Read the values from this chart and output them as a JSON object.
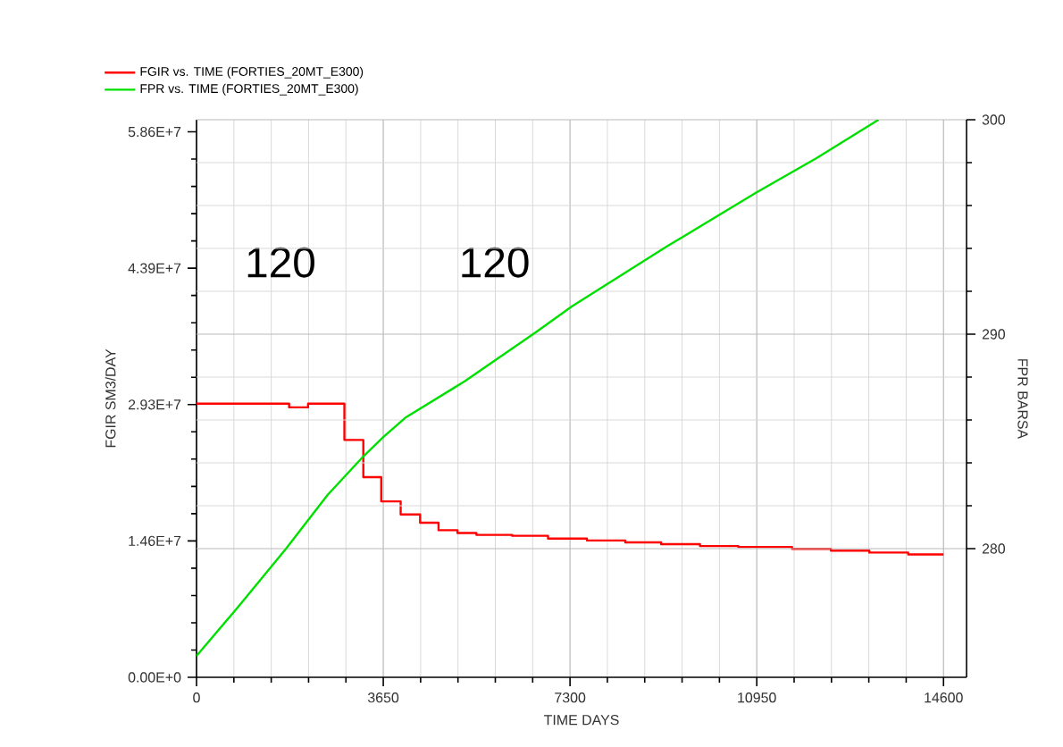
{
  "chart_data": {
    "type": "step",
    "xlabel": "TIME DAYS",
    "ylabel": "FGIR SM3/DAY",
    "y2label": "FPR BARSA",
    "xlim": [
      0,
      15050
    ],
    "xticks": [
      0,
      3650,
      7300,
      10950,
      14600
    ],
    "ylim": [
      0,
      59900000
    ],
    "yticks": [
      {
        "value": 0,
        "label": "0.00E+0"
      },
      {
        "value": 14650000,
        "label": "1.46E+7"
      },
      {
        "value": 29300000,
        "label": "2.93E+7"
      },
      {
        "value": 43950000,
        "label": "4.39E+7"
      },
      {
        "value": 58600000,
        "label": "5.86E+7"
      }
    ],
    "y2lim": [
      274,
      300
    ],
    "y2ticks": [
      280,
      290,
      300
    ],
    "grid": true,
    "legend": "top left",
    "marker": "none",
    "line_style": "solid",
    "annotations": [
      "120",
      "120"
    ],
    "series": [
      {
        "name": "FGIR vs. TIME (FORTIES_20MT_E300)",
        "color": "#ff0000",
        "axis": "y",
        "x": [
          0,
          1810,
          2180,
          2890,
          3260,
          3610,
          3990,
          4370,
          4730,
          5100,
          5470,
          6170,
          6870,
          7630,
          8380,
          9080,
          9840,
          10590,
          11640,
          12400,
          13150,
          13910,
          14600
        ],
        "values": [
          29400000,
          29000000,
          29400000,
          25500000,
          21500000,
          18900000,
          17500000,
          16600000,
          15800000,
          15500000,
          15300000,
          15200000,
          14900000,
          14700000,
          14500000,
          14300000,
          14100000,
          14000000,
          13800000,
          13600000,
          13400000,
          13200000,
          13200000
        ]
      },
      {
        "name": "FPR vs. TIME (FORTIES_20MT_E300)",
        "type": "line",
        "color": "#00e000",
        "axis": "y2",
        "x": [
          0,
          820,
          1750,
          2560,
          3260,
          3650,
          4080,
          5240,
          6640,
          7340,
          9200,
          10940,
          12110,
          13330
        ],
        "values": [
          275.0,
          277.3,
          280.0,
          282.5,
          284.3,
          285.2,
          286.1,
          287.8,
          290.1,
          291.3,
          294.1,
          296.6,
          298.2,
          300.0
        ]
      }
    ]
  }
}
